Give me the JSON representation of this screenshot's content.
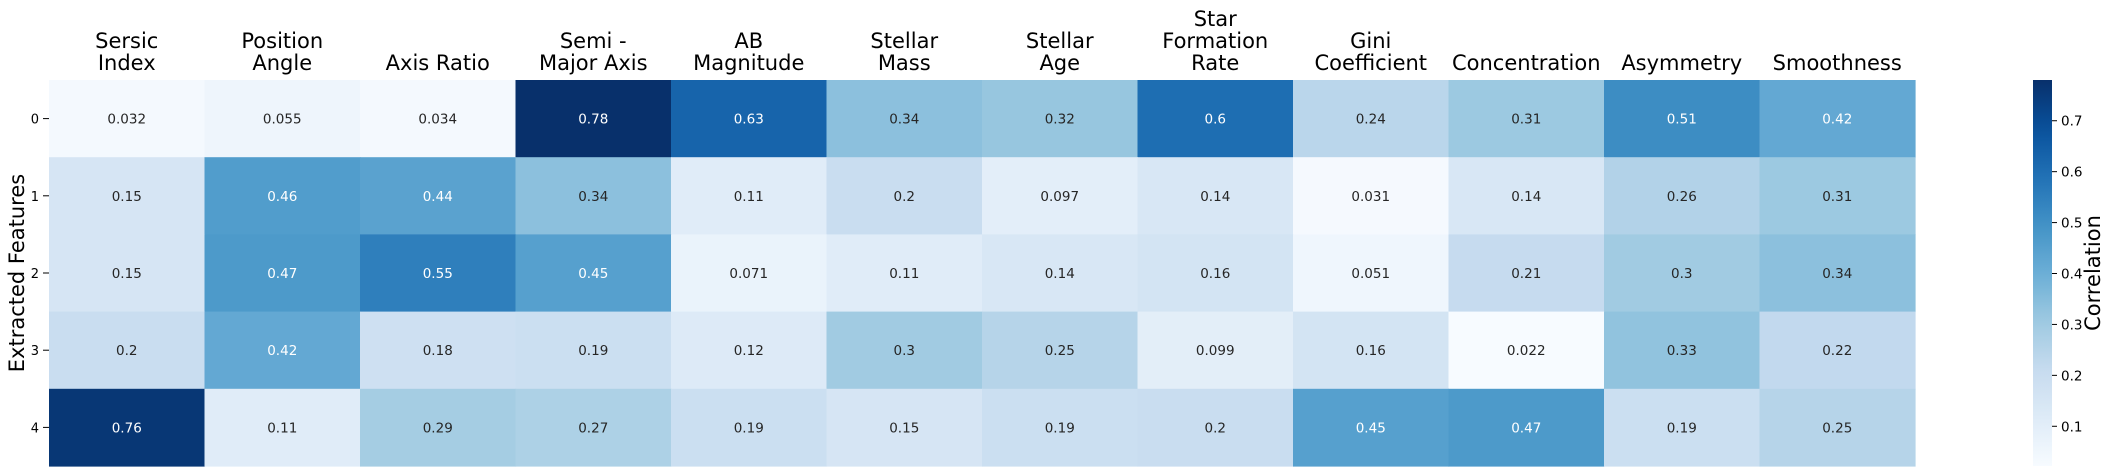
{
  "chart_data": {
    "type": "heatmap",
    "columns": [
      [
        "Sersic",
        "Index"
      ],
      [
        "Position",
        "Angle"
      ],
      [
        "Axis Ratio"
      ],
      [
        "Semi -",
        "Major Axis"
      ],
      [
        "AB",
        "Magnitude"
      ],
      [
        "Stellar",
        "Mass"
      ],
      [
        "Stellar",
        "Age"
      ],
      [
        "Star",
        "Formation",
        "Rate"
      ],
      [
        "Gini",
        "Coefficient"
      ],
      [
        "Concentration"
      ],
      [
        "Asymmetry"
      ],
      [
        "Smoothness"
      ]
    ],
    "rows": [
      "0",
      "1",
      "2",
      "3",
      "4"
    ],
    "values": [
      [
        0.032,
        0.055,
        0.034,
        0.78,
        0.63,
        0.34,
        0.32,
        0.6,
        0.24,
        0.31,
        0.51,
        0.42
      ],
      [
        0.15,
        0.46,
        0.44,
        0.34,
        0.11,
        0.2,
        0.097,
        0.14,
        0.031,
        0.14,
        0.26,
        0.31
      ],
      [
        0.15,
        0.47,
        0.55,
        0.45,
        0.071,
        0.11,
        0.14,
        0.16,
        0.051,
        0.21,
        0.3,
        0.34
      ],
      [
        0.2,
        0.42,
        0.18,
        0.19,
        0.12,
        0.3,
        0.25,
        0.099,
        0.16,
        0.022,
        0.33,
        0.22
      ],
      [
        0.76,
        0.11,
        0.29,
        0.27,
        0.19,
        0.15,
        0.19,
        0.2,
        0.45,
        0.47,
        0.19,
        0.25
      ]
    ],
    "ylabel": "Extracted Features",
    "xlabel": "",
    "colorbar": {
      "label": "Correlation",
      "range": [
        0.022,
        0.78
      ],
      "ticks": [
        0.1,
        0.2,
        0.3,
        0.4,
        0.5,
        0.6,
        0.7
      ]
    },
    "colormap": "Blues",
    "colormap_stops": [
      "#f7fbff",
      "#deebf7",
      "#c6dbef",
      "#9ecae1",
      "#6baed6",
      "#4292c6",
      "#2171b5",
      "#08519c",
      "#08306b"
    ],
    "x_axis_position": "top"
  }
}
